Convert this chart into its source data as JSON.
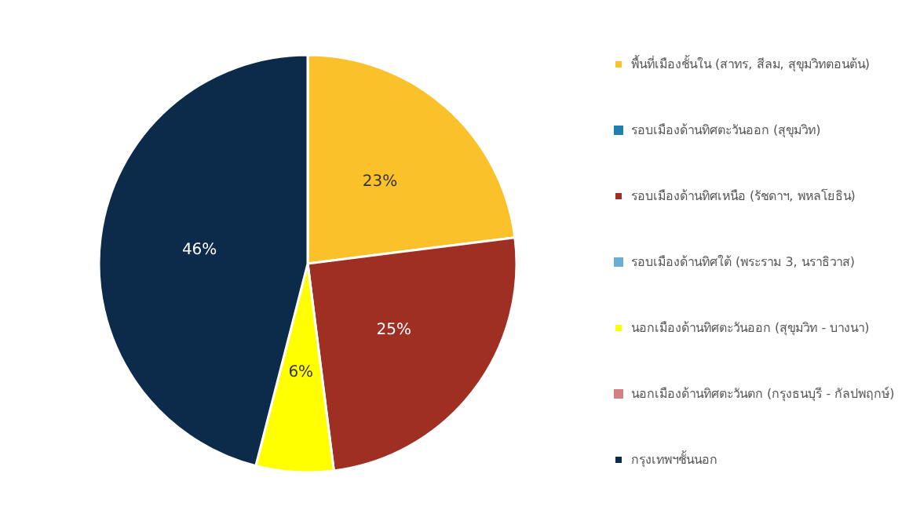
{
  "chart_data": {
    "type": "pie",
    "categories": [
      "พื้นที่เมืองชั้นใน (สาทร, สีลม, สุขุมวิทตอนต้น)",
      "รอบเมืองด้านทิศตะวันออก (สุขุมวิท)",
      "รอบเมืองด้านทิศเหนือ (รัชดาฯ, พหลโยธิน)",
      "รอบเมืองด้านทิศใต้ (พระราม 3, นราธิวาส)",
      "นอกเมืองด้านทิศตะวันออก (สุขุมวิท - บางนา)",
      "นอกเมืองด้านทิศตะวันตก (กรุงธนบุรี - กัลปพฤกษ์)",
      "กรุงเทพฯชั้นนอก"
    ],
    "values": [
      23,
      0,
      25,
      0,
      6,
      0,
      46
    ],
    "colors": [
      "#fbc12b",
      "#1f80b0",
      "#9e2f22",
      "#6aaed6",
      "#ffff00",
      "#d48080",
      "#0c2a4a"
    ],
    "value_labels": [
      "23%",
      null,
      "25%",
      null,
      "6%",
      null,
      "46%"
    ],
    "legend": "right"
  }
}
